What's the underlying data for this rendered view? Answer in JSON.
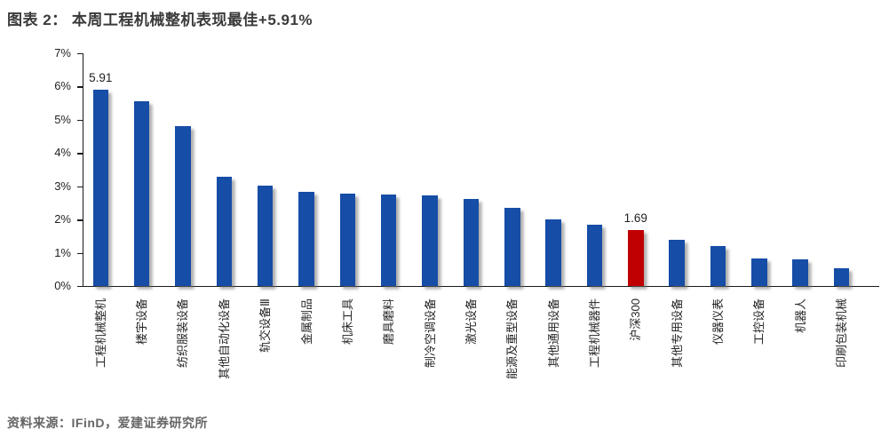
{
  "title": "图表 2： 本周工程机械整机表现最佳+5.91%",
  "source": "资料来源：IFinD，爱建证券研究所",
  "colors": {
    "bar_blue": "#164DA6",
    "bar_red": "#C00000",
    "title_text": "#3A3A3A",
    "source_text": "#666666",
    "axis_text": "#1F1F1F"
  },
  "chart_data": {
    "type": "bar",
    "title": "本周工程机械整机表现最佳+5.91%",
    "xlabel": "",
    "ylabel": "",
    "ylim": [
      0,
      7
    ],
    "grid": false,
    "legend": "none",
    "y_tick_labels": [
      "0%",
      "1%",
      "2%",
      "3%",
      "4%",
      "5%",
      "6%",
      "7%"
    ],
    "categories": [
      "工程机械整机",
      "楼宇设备",
      "纺织服装设备",
      "其他自动化设备",
      "轨交设备Ⅲ",
      "金属制品",
      "机床工具",
      "磨具磨料",
      "制冷空调设备",
      "激光设备",
      "能源及重型设备",
      "其他通用设备",
      "工程机械器件",
      "沪深300",
      "其他专用设备",
      "仪器仪表",
      "工控设备",
      "机器人",
      "印刷包装机械"
    ],
    "values": [
      5.91,
      5.57,
      4.8,
      3.28,
      3.02,
      2.84,
      2.79,
      2.75,
      2.73,
      2.61,
      2.34,
      2.01,
      1.85,
      1.69,
      1.38,
      1.21,
      0.84,
      0.8,
      0.54
    ],
    "highlight_category": "沪深300",
    "data_labels": [
      {
        "category_index": 0,
        "text": "5.91"
      },
      {
        "category_index": 13,
        "text": "1.69"
      }
    ]
  }
}
